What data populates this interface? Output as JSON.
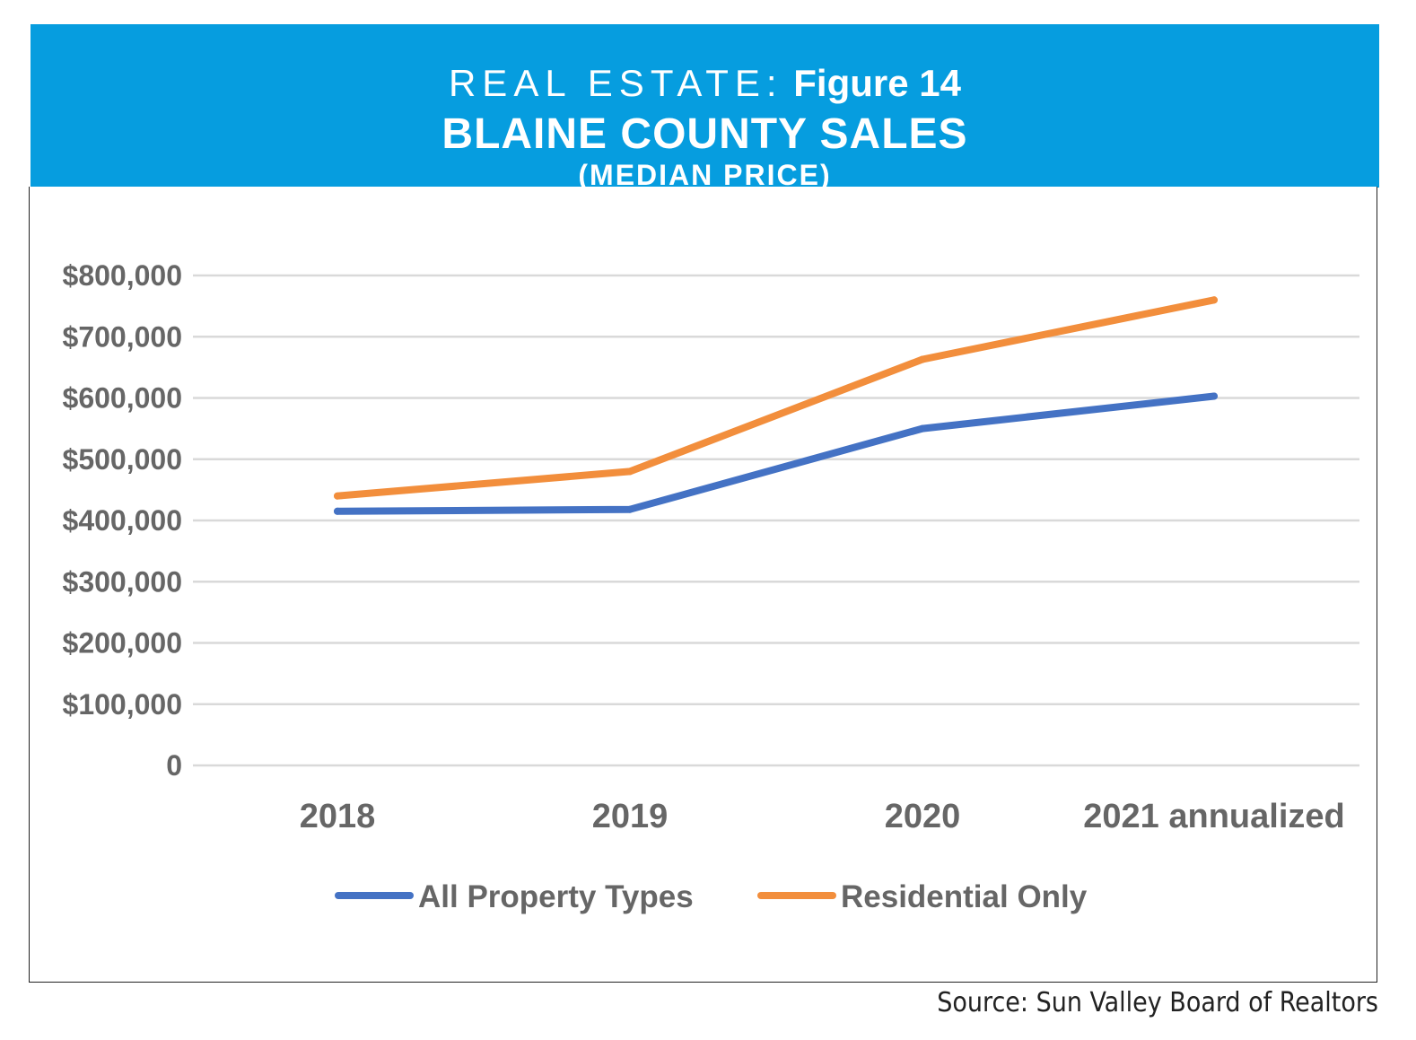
{
  "header": {
    "kicker": "REAL ESTATE:",
    "figure": "Figure 14",
    "title": "BLAINE COUNTY SALES",
    "subtitle": "(MEDIAN PRICE)"
  },
  "source": "Source: Sun Valley Board of Realtors",
  "colors": {
    "banner": "#069ddf",
    "all": "#4472c4",
    "residential": "#f28e3c",
    "grid": "#d9d9d9"
  },
  "chart_data": {
    "type": "line",
    "title": "BLAINE COUNTY SALES (MEDIAN PRICE)",
    "xlabel": "",
    "ylabel": "",
    "categories": [
      "2018",
      "2019",
      "2020",
      "2021 annualized"
    ],
    "ylim": [
      0,
      800000
    ],
    "ytick_values": [
      0,
      100000,
      200000,
      300000,
      400000,
      500000,
      600000,
      700000,
      800000
    ],
    "ytick_labels": [
      "0",
      "$100,000",
      "$200,000",
      "$300,000",
      "$400,000",
      "$500,000",
      "$600,000",
      "$700,000",
      "$800,000"
    ],
    "grid": true,
    "legend_position": "bottom",
    "series": [
      {
        "name": "All Property Types",
        "color": "#4472c4",
        "values": [
          415000,
          418000,
          550000,
          603000
        ]
      },
      {
        "name": "Residential Only",
        "color": "#f28e3c",
        "values": [
          440000,
          480000,
          663000,
          760000
        ]
      }
    ]
  }
}
